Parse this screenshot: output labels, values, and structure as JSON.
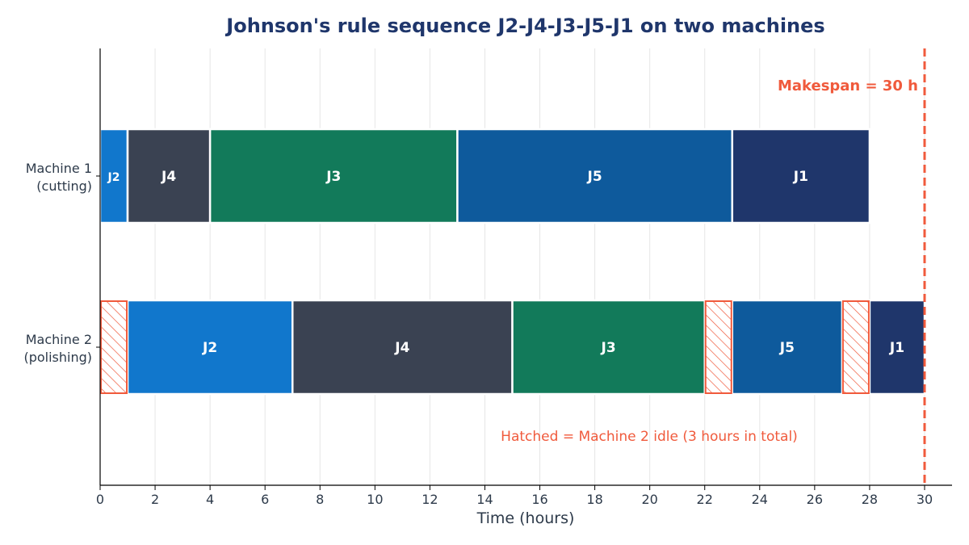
{
  "chart_data": {
    "type": "gantt",
    "title": "Johnson's rule sequence J2-J4-J3-J5-J1 on two machines",
    "xlabel": "Time (hours)",
    "xlim": [
      0,
      30
    ],
    "xticks": [
      0,
      2,
      4,
      6,
      8,
      10,
      12,
      14,
      16,
      18,
      20,
      22,
      24,
      26,
      28,
      30
    ],
    "grid": "vertical",
    "rows": [
      {
        "name": "Machine 1\n(cutting)",
        "label_lines": [
          "Machine 1",
          "(cutting)"
        ],
        "tasks": [
          {
            "job": "J2",
            "start": 0,
            "end": 1,
            "color": "#1177cc"
          },
          {
            "job": "J4",
            "start": 1,
            "end": 4,
            "color": "#3a4252"
          },
          {
            "job": "J3",
            "start": 4,
            "end": 13,
            "color": "#127a5a"
          },
          {
            "job": "J5",
            "start": 13,
            "end": 23,
            "color": "#0e5a9c"
          },
          {
            "job": "J1",
            "start": 23,
            "end": 28,
            "color": "#1f366b"
          }
        ],
        "idle": []
      },
      {
        "name": "Machine 2\n(polishing)",
        "label_lines": [
          "Machine 2",
          "(polishing)"
        ],
        "tasks": [
          {
            "job": "J2",
            "start": 1,
            "end": 7,
            "color": "#1177cc"
          },
          {
            "job": "J4",
            "start": 7,
            "end": 15,
            "color": "#3a4252"
          },
          {
            "job": "J3",
            "start": 15,
            "end": 22,
            "color": "#127a5a"
          },
          {
            "job": "J5",
            "start": 23,
            "end": 27,
            "color": "#0e5a9c"
          },
          {
            "job": "J1",
            "start": 28,
            "end": 30,
            "color": "#1f366b"
          }
        ],
        "idle": [
          {
            "start": 0,
            "end": 1
          },
          {
            "start": 22,
            "end": 23
          },
          {
            "start": 27,
            "end": 28
          }
        ]
      }
    ],
    "makespan": 30,
    "makespan_label": "Makespan = 30 h",
    "idle_note": "Hatched = Machine 2 idle (3 hours in total)",
    "colors": {
      "title": "#1f366b",
      "accent": "#f05a3c",
      "axis_text": "#2d3a4a",
      "grid": "#e6e6e6"
    }
  }
}
